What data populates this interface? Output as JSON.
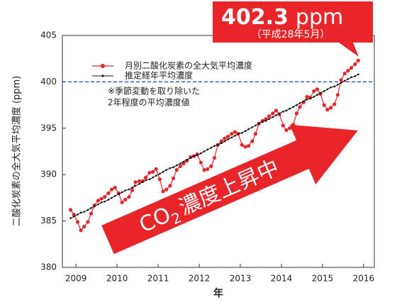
{
  "chart_data": {
    "type": "line",
    "y_label": "二酸化炭素の全大気平均濃度 (ppm)",
    "x_label": "年",
    "xlim": [
      2008.67,
      2016.26
    ],
    "xticks": [
      2009,
      2010,
      2011,
      2012,
      2013,
      2014,
      2015,
      2016
    ],
    "ylim": [
      380,
      405
    ],
    "yticks": [
      380,
      385,
      390,
      395,
      400,
      405
    ],
    "reference_line": {
      "value": 400,
      "color": "#1f3fd0"
    },
    "x": [
      2008.87,
      2008.95,
      2009.04,
      2009.12,
      2009.2,
      2009.29,
      2009.37,
      2009.45,
      2009.54,
      2009.62,
      2009.7,
      2009.79,
      2009.87,
      2009.95,
      2010.04,
      2010.12,
      2010.2,
      2010.29,
      2010.37,
      2010.45,
      2010.54,
      2010.62,
      2010.7,
      2010.79,
      2010.87,
      2010.95,
      2011.04,
      2011.12,
      2011.2,
      2011.29,
      2011.37,
      2011.45,
      2011.54,
      2011.62,
      2011.7,
      2011.79,
      2011.87,
      2011.95,
      2012.04,
      2012.12,
      2012.2,
      2012.29,
      2012.37,
      2012.45,
      2012.54,
      2012.62,
      2012.7,
      2012.79,
      2012.87,
      2012.95,
      2013.04,
      2013.12,
      2013.2,
      2013.29,
      2013.37,
      2013.45,
      2013.54,
      2013.62,
      2013.7,
      2013.79,
      2013.87,
      2013.95,
      2014.04,
      2014.12,
      2014.2,
      2014.29,
      2014.37,
      2014.45,
      2014.54,
      2014.62,
      2014.7,
      2014.79,
      2014.87,
      2014.95,
      2015.04,
      2015.12,
      2015.2,
      2015.29,
      2015.37,
      2015.45,
      2015.54,
      2015.62,
      2015.7,
      2015.79,
      2015.87
    ],
    "series": [
      {
        "name": "月別二酸化炭素の全大気平均濃度",
        "color": "#e8262a",
        "marker": "circle",
        "values": [
          386.2,
          385.7,
          384.9,
          384.0,
          384.4,
          384.9,
          385.8,
          386.7,
          387.2,
          387.4,
          387.6,
          388.0,
          388.4,
          388.6,
          388.0,
          387.0,
          387.3,
          387.6,
          388.3,
          389.2,
          389.3,
          389.3,
          389.7,
          390.2,
          390.3,
          390.6,
          389.5,
          388.2,
          388.4,
          388.8,
          389.6,
          390.5,
          390.9,
          391.2,
          391.5,
          391.9,
          392.0,
          392.2,
          391.3,
          390.5,
          390.6,
          390.9,
          391.8,
          393.2,
          393.6,
          393.9,
          394.1,
          394.4,
          394.6,
          394.4,
          393.2,
          393.0,
          393.1,
          393.6,
          394.4,
          395.5,
          395.8,
          396.0,
          396.3,
          396.6,
          396.9,
          396.5,
          395.3,
          394.8,
          395.0,
          395.4,
          396.6,
          397.3,
          397.8,
          398.4,
          398.3,
          399.0,
          399.2,
          398.7,
          397.5,
          397.0,
          397.2,
          397.6,
          398.6,
          400.2,
          400.9,
          401.2,
          401.5,
          401.9,
          402.3
        ]
      },
      {
        "name": "推定経年平均濃度",
        "color": "#111111",
        "marker": "dot",
        "values": [
          385.3,
          385.5,
          385.7,
          385.9,
          386.0,
          386.2,
          386.4,
          386.6,
          386.8,
          387.0,
          387.1,
          387.3,
          387.5,
          387.7,
          387.9,
          388.1,
          388.3,
          388.4,
          388.6,
          388.8,
          389.0,
          389.2,
          389.4,
          389.5,
          389.7,
          389.9,
          390.1,
          390.3,
          390.5,
          390.7,
          390.8,
          391.0,
          391.2,
          391.4,
          391.6,
          391.8,
          392.0,
          392.1,
          392.3,
          392.5,
          392.7,
          392.9,
          393.1,
          393.2,
          393.4,
          393.6,
          393.8,
          394.0,
          394.2,
          394.4,
          394.5,
          394.7,
          394.9,
          395.1,
          395.3,
          395.5,
          395.7,
          395.8,
          396.0,
          396.2,
          396.4,
          396.6,
          396.8,
          396.9,
          397.1,
          397.3,
          397.5,
          397.7,
          397.9,
          398.1,
          398.2,
          398.4,
          398.6,
          398.8,
          399.0,
          399.2,
          399.4,
          399.5,
          399.7,
          399.9,
          400.1,
          400.3,
          400.5,
          400.6,
          400.8
        ]
      }
    ],
    "note": [
      "※季節変動を取り除いた",
      "2年程度の平均濃度値"
    ],
    "callout": {
      "value": "402.3",
      "unit": "ppm",
      "date": "（平成28年5月）",
      "color": "#e8262a"
    },
    "arrow": {
      "text": [
        "CO",
        "2",
        "濃度上昇中"
      ],
      "color": "#e8262a"
    }
  }
}
